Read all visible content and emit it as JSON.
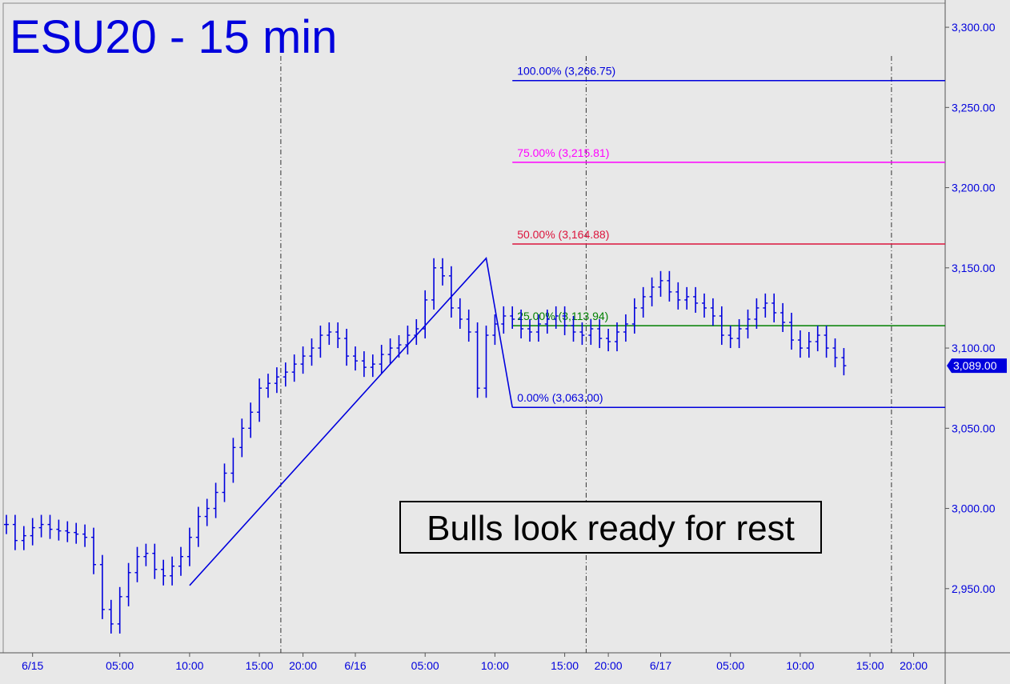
{
  "chart_data": {
    "type": "line",
    "title": "ESU20 - 15 min",
    "annotation": "Bulls look ready for rest",
    "last_price_label": "3,089.00",
    "ylim": [
      2910,
      3315
    ],
    "y_ticks": [
      {
        "value": 2950,
        "label": "2,950.00"
      },
      {
        "value": 3000,
        "label": "3,000.00"
      },
      {
        "value": 3050,
        "label": "3,050.00"
      },
      {
        "value": 3100,
        "label": "3,100.00"
      },
      {
        "value": 3150,
        "label": "3,150.00"
      },
      {
        "value": 3200,
        "label": "3,200.00"
      },
      {
        "value": 3250,
        "label": "3,250.00"
      },
      {
        "value": 3300,
        "label": "3,300.00"
      }
    ],
    "x_ticks": [
      "6/15",
      "05:00",
      "10:00",
      "15:00",
      "20:00",
      "6/16",
      "05:00",
      "10:00",
      "15:00",
      "20:00",
      "6/17",
      "05:00",
      "10:00",
      "15:00",
      "20:00"
    ],
    "x_tick_index": [
      3,
      13,
      21,
      29,
      34,
      40,
      48,
      56,
      64,
      69,
      75,
      83,
      91,
      99,
      104
    ],
    "session_break_index": [
      31,
      66,
      101
    ],
    "price_bars": [
      2990,
      2980,
      2983,
      2988,
      2990,
      2987,
      2986,
      2985,
      2984,
      2982,
      2965,
      2937,
      2928,
      2945,
      2960,
      2970,
      2972,
      2962,
      2958,
      2964,
      2970,
      2982,
      2995,
      3000,
      3010,
      3022,
      3038,
      3050,
      3060,
      3075,
      3078,
      3082,
      3085,
      3090,
      3095,
      3100,
      3108,
      3110,
      3106,
      3095,
      3092,
      3088,
      3090,
      3096,
      3100,
      3102,
      3108,
      3112,
      3130,
      3150,
      3145,
      3125,
      3118,
      3110,
      3075,
      3108,
      3115,
      3120,
      3118,
      3112,
      3110,
      3115,
      3118,
      3120,
      3114,
      3110,
      3108,
      3112,
      3106,
      3104,
      3110,
      3115,
      3125,
      3132,
      3138,
      3142,
      3135,
      3130,
      3132,
      3128,
      3125,
      3120,
      3108,
      3106,
      3112,
      3118,
      3125,
      3128,
      3122,
      3116,
      3105,
      3100,
      3104,
      3108,
      3100,
      3094,
      3089
    ],
    "pattern_line": [
      {
        "index": 21,
        "value": 2952
      },
      {
        "index": 55,
        "value": 3156
      },
      {
        "index": 58,
        "value": 3063
      }
    ],
    "fib_levels": [
      {
        "label": "100.00% (3,266.75)",
        "value": 3266.75,
        "color": "#0000dd"
      },
      {
        "label": "75.00% (3,215.81)",
        "value": 3215.81,
        "color": "#ff00ff"
      },
      {
        "label": "50.00% (3,164.88)",
        "value": 3164.88,
        "color": "#dc143c"
      },
      {
        "label": "25.00% (3,113.94)",
        "value": 3113.94,
        "color": "#008000"
      },
      {
        "label": "0.00% (3,063.00)",
        "value": 3063.0,
        "color": "#0000dd"
      }
    ],
    "fib_start_index": 58,
    "xlabel": "",
    "ylabel": "",
    "grid": false,
    "colors": {
      "background": "#e8e8e8",
      "price": "#0000dd",
      "text": "#0000dd",
      "last_price_badge": "#0000dd"
    }
  }
}
